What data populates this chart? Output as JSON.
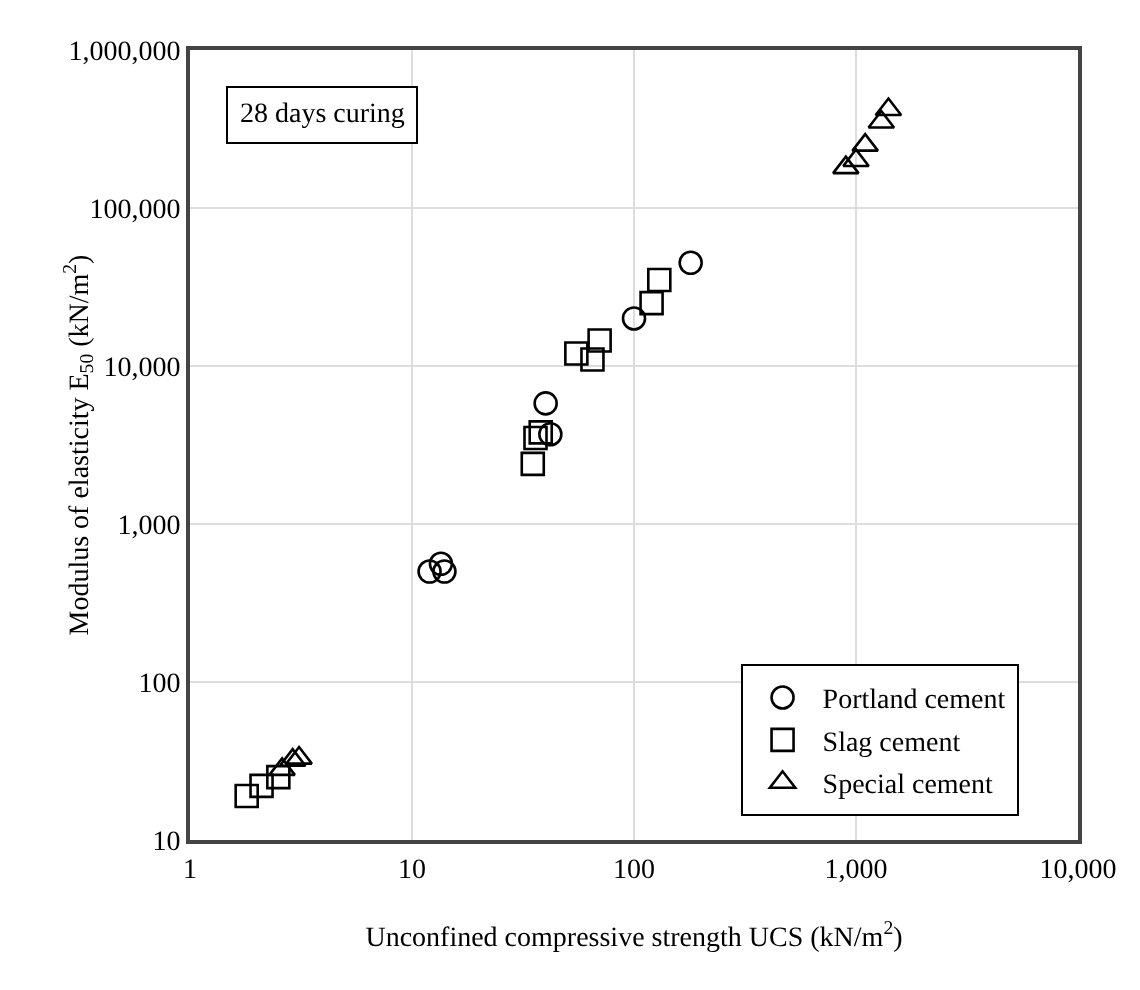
{
  "chart_data": {
    "type": "scatter",
    "xlabel": "Unconfined compressive strength UCS (kN/m$^{2}$)",
    "ylabel": "Modulus of elasticity E$_{50}$ (kN/m$^{2}$)",
    "log": "xy",
    "grid": true,
    "legend": "bottom right",
    "annotations": [
      "28 days curing"
    ],
    "xlim": [
      1,
      10000
    ],
    "ylim": [
      10,
      1000000
    ],
    "xticks": [
      1,
      10,
      {
        "value": 100,
        "label": "100"
      },
      {
        "value": 1000,
        "label": "1,000"
      },
      {
        "value": 10000,
        "label": "10,000"
      }
    ],
    "yticks": [
      10,
      100,
      {
        "value": 1000,
        "label": "1,000"
      },
      {
        "value": 10000,
        "label": "10,000"
      },
      {
        "value": 100000,
        "label": "100,000"
      },
      {
        "value": 1000000,
        "label": "1,000,000"
      }
    ],
    "series": [
      {
        "name": "Portland cement",
        "color": "#000000",
        "marker": "circle",
        "x": [
          12,
          13.5,
          14,
          40,
          42,
          100,
          180
        ],
        "values": [
          500,
          560,
          500,
          5800,
          3700,
          20000,
          45000
        ]
      },
      {
        "name": "Slag cement",
        "color": "#000000",
        "marker": "square",
        "x": [
          1.8,
          2.1,
          2.5,
          35,
          36,
          38,
          55,
          65,
          70,
          120,
          130
        ],
        "values": [
          19,
          22,
          25,
          2400,
          3500,
          3800,
          12000,
          11000,
          14500,
          25000,
          35000
        ]
      },
      {
        "name": "Special cement",
        "color": "#000000",
        "marker": "triangle",
        "x": [
          2.6,
          2.9,
          3.1,
          900,
          1000,
          1100,
          1300,
          1400
        ],
        "values": [
          28,
          32,
          33,
          180000,
          200000,
          250000,
          350000,
          420000
        ]
      }
    ]
  }
}
